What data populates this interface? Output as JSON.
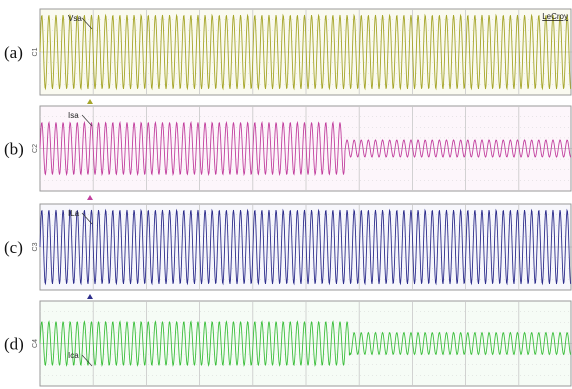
{
  "brand": "LeCroy",
  "panels": [
    {
      "label": "(a)",
      "trace": "Vsa",
      "channel": "C1"
    },
    {
      "label": "(b)",
      "trace": "Isa",
      "channel": "C2"
    },
    {
      "label": "(c)",
      "trace": "ILa",
      "channel": "C3"
    },
    {
      "label": "(d)",
      "trace": "Ica",
      "channel": "C4"
    }
  ]
}
